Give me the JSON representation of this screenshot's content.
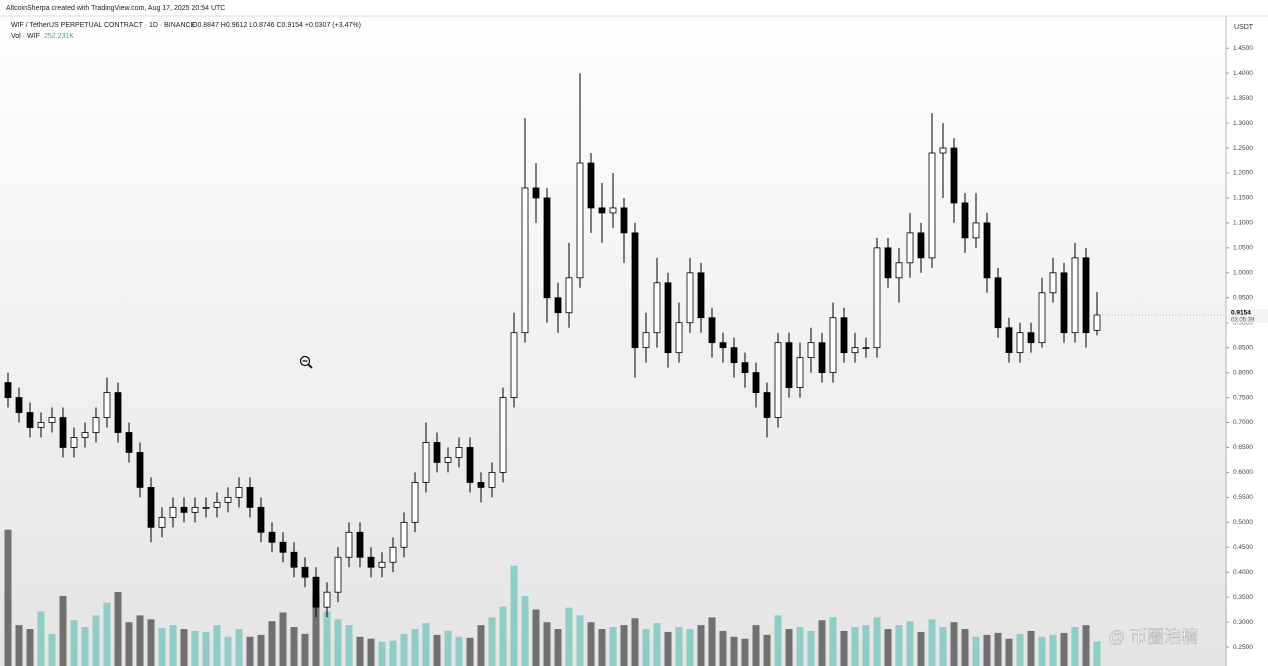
{
  "header": {
    "credit": "AltcoinSherpa created with TradingView.com, Aug 17, 2025 20:54 UTC",
    "symbol": "WIF / TetherUS PERPETUAL CONTRACT · 1D · BINANCE",
    "ohlc": "O0.8847 H0.9612 L0.8746 C0.9154 +0.0307 (+3.47%)"
  },
  "watermark": "@ 币圈浩楠",
  "chart_data": {
    "type": "candlestick",
    "axis_title": "USDT",
    "up_color": "#ffffff",
    "down_color": "#000000",
    "edge_color": "#000000",
    "open": [
      0.78,
      0.75,
      0.72,
      0.69,
      0.7,
      0.71,
      0.65,
      0.67,
      0.68,
      0.71,
      0.76,
      0.68,
      0.64,
      0.57,
      0.49,
      0.51,
      0.53,
      0.52,
      0.53,
      0.53,
      0.54,
      0.55,
      0.57,
      0.53,
      0.48,
      0.46,
      0.44,
      0.41,
      0.39,
      0.33,
      0.36,
      0.43,
      0.48,
      0.43,
      0.41,
      0.42,
      0.45,
      0.5,
      0.58,
      0.66,
      0.62,
      0.63,
      0.65,
      0.58,
      0.57,
      0.6,
      0.75,
      0.88,
      1.17,
      1.15,
      0.95,
      0.92,
      0.99,
      1.22,
      1.13,
      1.12,
      1.13,
      1.08,
      0.85,
      0.88,
      0.98,
      0.84,
      0.9,
      1.0,
      0.91,
      0.86,
      0.85,
      0.82,
      0.8,
      0.76,
      0.71,
      0.86,
      0.77,
      0.83,
      0.86,
      0.8,
      0.91,
      0.84,
      0.85,
      0.85,
      1.05,
      0.99,
      1.02,
      1.08,
      1.03,
      1.24,
      1.25,
      1.14,
      1.07,
      1.1,
      0.99,
      0.89,
      0.84,
      0.88,
      0.86,
      0.96,
      1.0,
      0.88,
      1.03,
      0.8847
    ],
    "high": [
      0.8,
      0.77,
      0.74,
      0.72,
      0.73,
      0.73,
      0.69,
      0.7,
      0.73,
      0.79,
      0.78,
      0.7,
      0.66,
      0.59,
      0.53,
      0.55,
      0.55,
      0.55,
      0.55,
      0.56,
      0.57,
      0.59,
      0.59,
      0.55,
      0.5,
      0.48,
      0.46,
      0.43,
      0.41,
      0.38,
      0.45,
      0.5,
      0.5,
      0.45,
      0.44,
      0.47,
      0.52,
      0.6,
      0.7,
      0.68,
      0.65,
      0.67,
      0.67,
      0.6,
      0.62,
      0.77,
      0.92,
      1.31,
      1.22,
      1.17,
      0.98,
      1.06,
      1.4,
      1.24,
      1.18,
      1.2,
      1.15,
      1.1,
      0.92,
      1.03,
      1.0,
      0.94,
      1.03,
      1.02,
      0.93,
      0.88,
      0.87,
      0.84,
      0.82,
      0.78,
      0.88,
      0.88,
      0.86,
      0.89,
      0.88,
      0.94,
      0.93,
      0.88,
      0.87,
      1.07,
      1.07,
      1.05,
      1.12,
      1.1,
      1.32,
      1.3,
      1.27,
      1.16,
      1.16,
      1.12,
      1.01,
      0.91,
      0.9,
      0.9,
      0.99,
      1.03,
      1.02,
      1.06,
      1.05,
      0.9612
    ],
    "low": [
      0.73,
      0.7,
      0.67,
      0.67,
      0.68,
      0.63,
      0.63,
      0.65,
      0.66,
      0.69,
      0.66,
      0.62,
      0.55,
      0.46,
      0.47,
      0.49,
      0.5,
      0.5,
      0.51,
      0.51,
      0.52,
      0.53,
      0.51,
      0.46,
      0.44,
      0.42,
      0.39,
      0.37,
      0.31,
      0.31,
      0.34,
      0.41,
      0.41,
      0.39,
      0.39,
      0.4,
      0.43,
      0.48,
      0.56,
      0.6,
      0.6,
      0.61,
      0.56,
      0.54,
      0.55,
      0.58,
      0.73,
      0.86,
      1.1,
      0.9,
      0.88,
      0.89,
      0.97,
      1.08,
      1.06,
      1.09,
      1.02,
      0.79,
      0.82,
      0.85,
      0.81,
      0.82,
      0.88,
      0.88,
      0.83,
      0.82,
      0.79,
      0.77,
      0.73,
      0.67,
      0.69,
      0.75,
      0.75,
      0.8,
      0.78,
      0.78,
      0.82,
      0.82,
      0.83,
      0.83,
      0.97,
      0.94,
      0.99,
      1.0,
      1.01,
      1.15,
      1.1,
      1.04,
      1.05,
      0.96,
      0.87,
      0.82,
      0.82,
      0.84,
      0.85,
      0.94,
      0.86,
      0.86,
      0.85,
      0.8746
    ],
    "close": [
      0.75,
      0.72,
      0.69,
      0.7,
      0.71,
      0.65,
      0.67,
      0.68,
      0.71,
      0.76,
      0.68,
      0.64,
      0.57,
      0.49,
      0.51,
      0.53,
      0.52,
      0.53,
      0.53,
      0.54,
      0.55,
      0.57,
      0.53,
      0.48,
      0.46,
      0.44,
      0.41,
      0.39,
      0.33,
      0.36,
      0.43,
      0.48,
      0.43,
      0.41,
      0.42,
      0.45,
      0.5,
      0.58,
      0.66,
      0.62,
      0.63,
      0.65,
      0.58,
      0.57,
      0.6,
      0.75,
      0.88,
      1.17,
      1.15,
      0.95,
      0.92,
      0.99,
      1.22,
      1.13,
      1.12,
      1.13,
      1.08,
      0.85,
      0.88,
      0.98,
      0.84,
      0.9,
      1.0,
      0.91,
      0.86,
      0.85,
      0.82,
      0.8,
      0.76,
      0.71,
      0.86,
      0.77,
      0.83,
      0.86,
      0.8,
      0.91,
      0.84,
      0.85,
      0.85,
      1.05,
      0.99,
      1.02,
      1.08,
      1.03,
      1.24,
      1.25,
      1.14,
      1.07,
      1.1,
      0.99,
      0.89,
      0.84,
      0.88,
      0.86,
      0.96,
      1.0,
      0.88,
      1.03,
      0.88,
      0.9154
    ],
    "ylim": [
      0.2121,
      1.5146
    ],
    "yticks": [
      {
        "value": 0.25,
        "label": "0.2500"
      },
      {
        "value": 0.3,
        "label": "0.3000"
      },
      {
        "value": 0.35,
        "label": "0.3500"
      },
      {
        "value": 0.4,
        "label": "0.4000"
      },
      {
        "value": 0.45,
        "label": "0.4500"
      },
      {
        "value": 0.5,
        "label": "0.5000"
      },
      {
        "value": 0.55,
        "label": "0.5500"
      },
      {
        "value": 0.6,
        "label": "0.6000"
      },
      {
        "value": 0.65,
        "label": "0.6500"
      },
      {
        "value": 0.7,
        "label": "0.7000"
      },
      {
        "value": 0.75,
        "label": "0.7500"
      },
      {
        "value": 0.8,
        "label": "0.8000"
      },
      {
        "value": 0.85,
        "label": "0.8500"
      },
      {
        "value": 0.9,
        "label": "0.9000"
      },
      {
        "value": 0.95,
        "label": "0.9500"
      },
      {
        "value": 1.0,
        "label": "1.0000"
      },
      {
        "value": 1.05,
        "label": "1.0500"
      },
      {
        "value": 1.1,
        "label": "1.1000"
      },
      {
        "value": 1.15,
        "label": "1.1500"
      },
      {
        "value": 1.2,
        "label": "1.2000"
      },
      {
        "value": 1.25,
        "label": "1.2500"
      },
      {
        "value": 1.3,
        "label": "1.3000"
      },
      {
        "value": 1.35,
        "label": "1.3500"
      },
      {
        "value": 1.4,
        "label": "1.4000"
      },
      {
        "value": 1.45,
        "label": "1.4500"
      }
    ],
    "last_price": 0.9154,
    "countdown": "03:05:39",
    "volume": {
      "name": "Vol · WIF",
      "last_value_label": "252.231K",
      "up_color": "#8fcdc6",
      "down_color": "#707070",
      "ylim": [
        0,
        1500
      ],
      "values": [
        1400,
        420,
        380,
        560,
        330,
        720,
        470,
        400,
        520,
        650,
        760,
        450,
        520,
        480,
        390,
        420,
        380,
        360,
        350,
        420,
        300,
        380,
        300,
        320,
        460,
        550,
        400,
        330,
        740,
        560,
        480,
        420,
        300,
        280,
        250,
        260,
        330,
        380,
        440,
        320,
        360,
        300,
        290,
        420,
        500,
        610,
        1030,
        720,
        580,
        450,
        380,
        600,
        520,
        450,
        380,
        400,
        420,
        490,
        380,
        440,
        350,
        400,
        380,
        420,
        500,
        360,
        300,
        280,
        420,
        320,
        520,
        380,
        400,
        360,
        470,
        500,
        360,
        400,
        420,
        500,
        380,
        420,
        460,
        350,
        480,
        400,
        450,
        380,
        300,
        320,
        340,
        280,
        330,
        360,
        300,
        320,
        340,
        400,
        420,
        252.231
      ]
    }
  }
}
